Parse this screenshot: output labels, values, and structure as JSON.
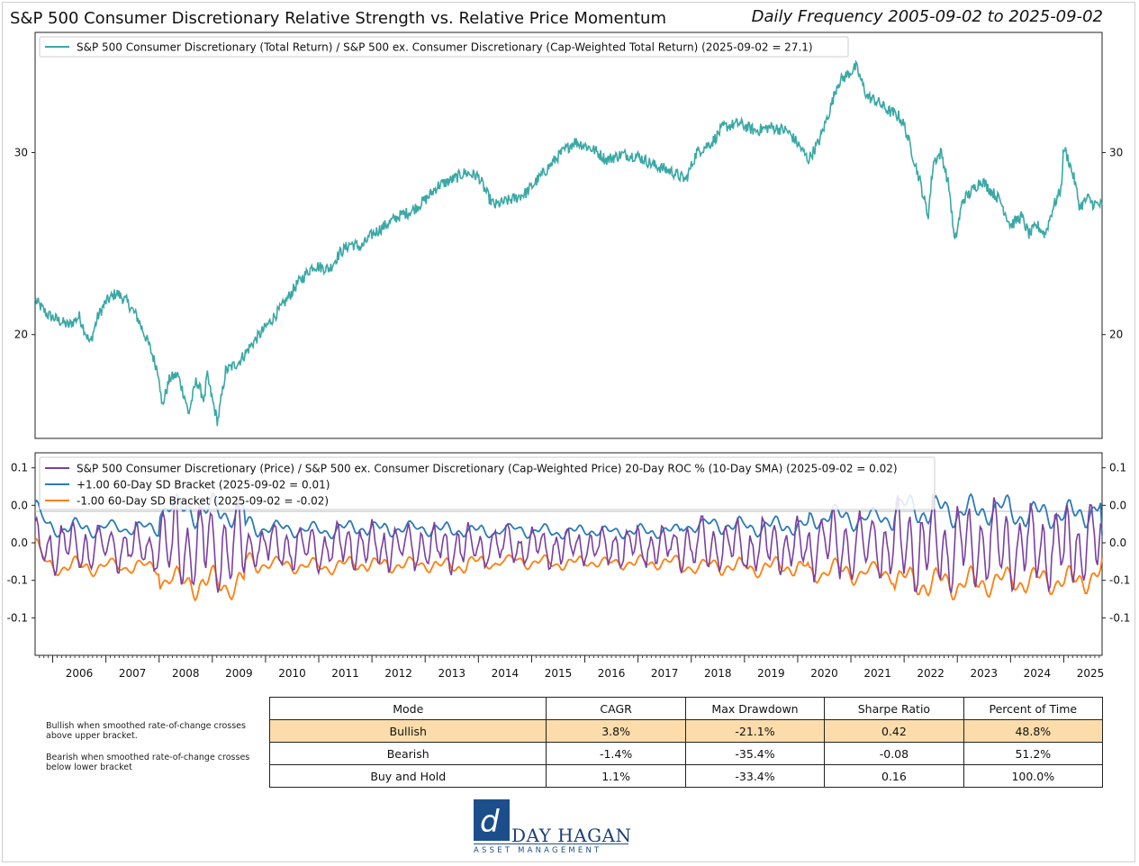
{
  "header": {
    "title": "S&P 500 Consumer Discretionary Relative Strength vs. Relative Price Momentum",
    "subtitle": "Daily Frequency 2005-09-02 to 2025-09-02"
  },
  "colors": {
    "ratio": "#3aa8a5",
    "roc": "#7b3fa0",
    "upper": "#2c7bb6",
    "lower": "#ff7f0e",
    "bullish_row": "#fcdcaa",
    "logo": "#1d4e8c"
  },
  "chart_data": [
    {
      "type": "line",
      "id": "relative-strength",
      "legend": [
        "S&P 500 Consumer Discretionary (Total Return) / S&P 500 ex. Consumer Discretionary (Cap-Weighted Total Return) (2025-09-02 = 27.1)"
      ],
      "legend_position": "top-left",
      "yticks": [
        20,
        30
      ],
      "ylim": [
        14.3,
        36.6
      ],
      "xlim": [
        2005.67,
        2025.72
      ],
      "series": [
        {
          "name": "S&P 500 Consumer Discretionary (Total Return) / S&P 500 ex. Consumer Discretionary (Cap-Weighted Total Return)",
          "x": [
            2005.67,
            2005.9,
            2006.1,
            2006.3,
            2006.5,
            2006.7,
            2006.85,
            2007.0,
            2007.2,
            2007.4,
            2007.6,
            2007.8,
            2008.0,
            2008.05,
            2008.2,
            2008.35,
            2008.5,
            2008.55,
            2008.7,
            2008.85,
            2008.9,
            2009.0,
            2009.1,
            2009.25,
            2009.5,
            2009.75,
            2010.0,
            2010.3,
            2010.6,
            2010.9,
            2011.2,
            2011.4,
            2011.6,
            2011.8,
            2012.0,
            2012.25,
            2012.5,
            2012.75,
            2013.0,
            2013.25,
            2013.5,
            2013.75,
            2014.0,
            2014.2,
            2014.3,
            2014.5,
            2014.7,
            2014.9,
            2015.2,
            2015.5,
            2015.8,
            2016.0,
            2016.2,
            2016.4,
            2016.7,
            2017.0,
            2017.3,
            2017.6,
            2017.9,
            2018.1,
            2018.4,
            2018.6,
            2018.9,
            2019.2,
            2019.5,
            2019.8,
            2020.0,
            2020.2,
            2020.4,
            2020.6,
            2020.75,
            2020.9,
            2021.1,
            2021.3,
            2021.5,
            2021.7,
            2021.9,
            2022.0,
            2022.15,
            2022.3,
            2022.45,
            2022.55,
            2022.7,
            2022.85,
            2022.95,
            2023.1,
            2023.25,
            2023.45,
            2023.6,
            2023.8,
            2024.0,
            2024.2,
            2024.35,
            2024.5,
            2024.65,
            2024.8,
            2024.95,
            2025.0,
            2025.1,
            2025.2,
            2025.3,
            2025.45,
            2025.55,
            2025.72
          ],
          "values": [
            21.9,
            21.1,
            20.8,
            20.5,
            21.0,
            19.5,
            21.0,
            21.8,
            22.3,
            21.8,
            20.9,
            19.5,
            17.8,
            16.0,
            17.6,
            17.8,
            16.4,
            15.6,
            17.5,
            16.4,
            17.8,
            16.4,
            15.2,
            18.0,
            18.5,
            19.5,
            20.4,
            21.5,
            22.8,
            23.8,
            23.6,
            24.5,
            25.0,
            24.8,
            25.5,
            26.0,
            26.5,
            26.8,
            27.4,
            28.2,
            28.5,
            28.9,
            28.7,
            27.5,
            27.1,
            27.3,
            27.5,
            27.8,
            28.8,
            29.8,
            30.6,
            30.4,
            30.1,
            29.6,
            29.9,
            29.8,
            29.3,
            29.0,
            28.5,
            30.0,
            30.6,
            31.4,
            31.6,
            31.2,
            31.4,
            31.2,
            30.5,
            29.6,
            30.6,
            32.3,
            33.8,
            34.2,
            34.7,
            33.1,
            32.8,
            32.3,
            32.0,
            31.5,
            30.0,
            28.4,
            26.5,
            29.5,
            30.0,
            28.0,
            25.0,
            27.4,
            27.8,
            28.5,
            28.0,
            27.4,
            26.0,
            26.5,
            25.5,
            26.0,
            25.5,
            27.0,
            28.0,
            30.3,
            29.5,
            28.5,
            27.0,
            27.5,
            27.2,
            27.1
          ]
        }
      ]
    },
    {
      "type": "line",
      "id": "momentum",
      "legend": [
        "S&P 500 Consumer Discretionary (Price) / S&P 500 ex. Consumer Discretionary (Cap-Weighted Price) 20-Day ROC % (10-Day SMA) (2025-09-02 = 0.02)",
        "+1.00 60-Day SD Bracket (2025-09-02 = 0.01)",
        "-1.00 60-Day SD Bracket (2025-09-02 = -0.02)"
      ],
      "legend_position": "top-left",
      "yticks": [
        0.1,
        0.05,
        0.0,
        -0.05,
        -0.1
      ],
      "ytick_labels": [
        "0.1",
        "0.0",
        "0.0",
        "-0.1",
        "-0.1"
      ],
      "ylim": [
        -0.15,
        0.12
      ],
      "xlim": [
        2005.67,
        2025.72
      ],
      "xticks": [
        "2006",
        "2007",
        "2008",
        "2009",
        "2010",
        "2011",
        "2012",
        "2013",
        "2014",
        "2015",
        "2016",
        "2017",
        "2018",
        "2019",
        "2020",
        "2021",
        "2022",
        "2023",
        "2024",
        "2025"
      ],
      "series": [
        {
          "name": "20-Day ROC % (10-Day SMA)",
          "last": 0.02
        },
        {
          "name": "+1.00 60-Day SD Bracket",
          "last": 0.01
        },
        {
          "name": "-1.00 60-Day SD Bracket",
          "last": -0.02
        }
      ]
    }
  ],
  "notes": {
    "bullish": "Bullish when smoothed rate-of-change crosses above upper bracket.",
    "bearish": "Bearish when smoothed rate-of-change crosses below lower bracket"
  },
  "table": {
    "headers": [
      "Mode",
      "CAGR",
      "Max Drawdown",
      "Sharpe Ratio",
      "Percent of Time"
    ],
    "rows": [
      [
        "Bullish",
        "3.8%",
        "-21.1%",
        "0.42",
        "48.8%"
      ],
      [
        "Bearish",
        "-1.4%",
        "-35.4%",
        "-0.08",
        "51.2%"
      ],
      [
        "Buy and Hold",
        "1.1%",
        "-33.4%",
        "0.16",
        "100.0%"
      ]
    ]
  },
  "logo": {
    "mark": "d",
    "name": "DAY HAGAN",
    "sub": "ASSET MANAGEMENT"
  }
}
